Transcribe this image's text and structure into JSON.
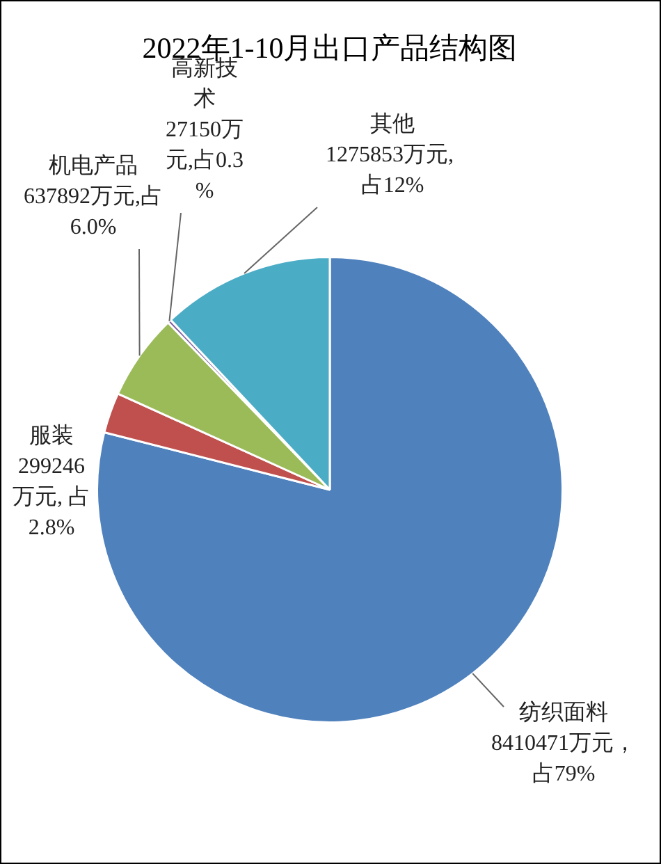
{
  "chart_data": {
    "type": "pie",
    "title": "2022年1-10月出口产品结构图",
    "categories": [
      "纺织面料",
      "服装",
      "机电产品",
      "高新技术",
      "其他"
    ],
    "values": [
      8410471,
      299246,
      637892,
      27150,
      1275853
    ],
    "value_labels": [
      "8410471万元，占79%",
      "299246万元, 占2.8%",
      "637892万元,占6.0%",
      "27150万元,占0.3%",
      "1275853万元, 占12%"
    ],
    "colors": [
      "#4f81bd",
      "#c0504d",
      "#9bbb59",
      "#8064a2",
      "#4bacc6"
    ]
  }
}
